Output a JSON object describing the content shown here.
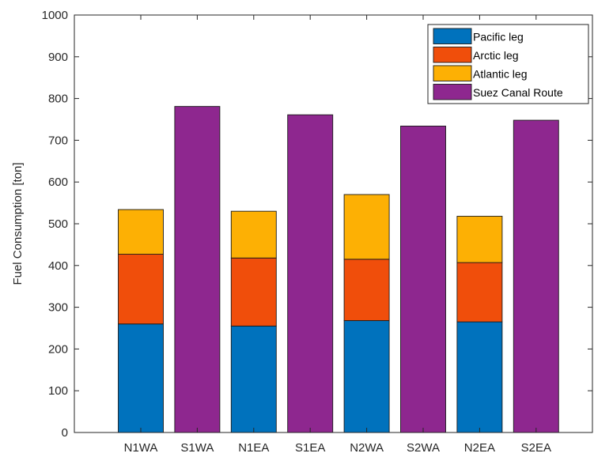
{
  "chart_data": {
    "type": "bar",
    "stacked": true,
    "categories": [
      "N1WA",
      "S1WA",
      "N1EA",
      "S1EA",
      "N2WA",
      "S2WA",
      "N2EA",
      "S2EA"
    ],
    "ylabel": "Fuel Consumption [ton]",
    "xlabel": "",
    "ylim": [
      0,
      1000
    ],
    "yticks": [
      0,
      100,
      200,
      300,
      400,
      500,
      600,
      700,
      800,
      900,
      1000
    ],
    "grid": false,
    "legend_position": "top-right",
    "series": [
      {
        "name": "Pacific leg",
        "color": "#0072BD",
        "values": [
          260,
          0,
          255,
          0,
          268,
          0,
          265,
          0
        ]
      },
      {
        "name": "Arctic leg",
        "color": "#F04E0B",
        "values": [
          167,
          0,
          163,
          0,
          147,
          0,
          142,
          0
        ]
      },
      {
        "name": "Atlantic leg",
        "color": "#FDB004",
        "values": [
          107,
          0,
          112,
          0,
          155,
          0,
          111,
          0
        ]
      },
      {
        "name": "Suez Canal Route",
        "color": "#8E278F",
        "values": [
          0,
          781,
          0,
          761,
          0,
          734,
          0,
          748
        ]
      }
    ]
  }
}
